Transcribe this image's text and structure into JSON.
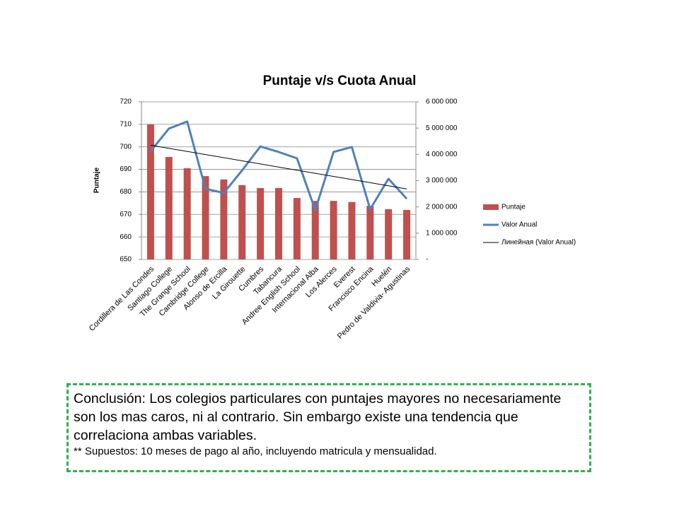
{
  "chart_data": {
    "type": "bar",
    "title": "Puntaje v/s Cuota Anual",
    "y_label": "Puntaje",
    "categories": [
      "Cordillera de Las Condes",
      "Santiago College",
      "The Grange School",
      "Cambridge College",
      "Alonso de Ercilla",
      "La Girouette",
      "Cumbres",
      "Tabancura",
      "Andree English School",
      "Internacional Alba",
      "Los Alerces",
      "Everest",
      "Francisco Encina",
      "Huelén",
      "Pedro de Valdivia- Agustinas"
    ],
    "series": [
      {
        "name": "Puntaje",
        "color": "#c0504d",
        "values": [
          710,
          695.5,
          690.5,
          687,
          685.5,
          683,
          681.7,
          681.7,
          677.3,
          676,
          676,
          675.5,
          673.8,
          672.3,
          672
        ]
      },
      {
        "name": "Valor Anual",
        "color": "#4f81bd",
        "axis": "y2",
        "type": "line",
        "values": [
          4120000,
          4980000,
          5250000,
          2690000,
          2530000,
          3390000,
          4300000,
          4090000,
          3850000,
          1880000,
          4090000,
          4280000,
          1910000,
          3070000,
          2310000
        ],
        "trendline": {
          "name": "Линейная (Valor Anual)",
          "color": "#000000"
        }
      }
    ],
    "ylim": [
      650,
      720
    ],
    "yticks": [
      650,
      660,
      670,
      680,
      690,
      700,
      710,
      720
    ],
    "y2lim": [
      0,
      6000000
    ],
    "y2ticks": [
      {
        "value": 0,
        "label": "-"
      },
      {
        "value": 1000000,
        "label": "1 000 000"
      },
      {
        "value": 2000000,
        "label": "2 000 000"
      },
      {
        "value": 3000000,
        "label": "3 000 000"
      },
      {
        "value": 4000000,
        "label": "4 000 000"
      },
      {
        "value": 5000000,
        "label": "5 000 000"
      },
      {
        "value": 6000000,
        "label": "6 000 000"
      }
    ],
    "grid": true,
    "legend": "right"
  },
  "conclusion": {
    "text": "Conclusión: Los colegios particulares con puntajes mayores no necesariamente son los mas caros, ni al contrario. Sin embargo existe una tendencia que correlaciona ambas variables.",
    "note": "** Supuestos: 10 meses de pago al año, incluyendo matricula y mensualidad."
  }
}
